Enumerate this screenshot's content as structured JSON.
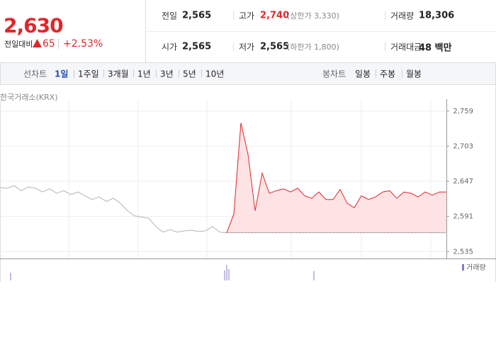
{
  "quote": {
    "price": "2,630",
    "change_label": "전일대비",
    "change": "65",
    "change_rate": "+2.53%"
  },
  "summary": {
    "rows": [
      [
        {
          "label": "전일",
          "value": "2,565"
        },
        {
          "label": "고가",
          "value": "2,740",
          "note": "(상한가 3,330)"
        },
        {
          "label": "거래량",
          "value": "18,306"
        }
      ],
      [
        {
          "label": "시가",
          "value": "2,565"
        },
        {
          "label": "저가",
          "value": "2,565",
          "note": "(하한가 1,800)"
        },
        {
          "label": "거래대금",
          "value": "48 백만"
        }
      ]
    ]
  },
  "tabs": {
    "line_label": "선차트",
    "line_periods": [
      "1일",
      "1주일",
      "3개월",
      "1년",
      "3년",
      "5년",
      "10년"
    ],
    "candle_label": "봉차트",
    "candle_periods": [
      "일봉",
      "주봉",
      "월봉"
    ]
  },
  "chart": {
    "type": "line",
    "source": "한국거래소(KRX)",
    "ylim": [
      2524,
      2778
    ],
    "yticks": [
      {
        "value": 2759,
        "label": "2,759"
      },
      {
        "value": 2703,
        "label": "2,703"
      },
      {
        "value": 2647,
        "label": "2,647"
      },
      {
        "value": 2591,
        "label": "2,591"
      },
      {
        "value": 2535,
        "label": "2,535"
      }
    ],
    "baseline": 2565,
    "series": [
      {
        "color": "#b4b4b4",
        "values": [
          2637,
          2636,
          2640,
          2632,
          2638,
          2636,
          2630,
          2635,
          2628,
          2632,
          2626,
          2630,
          2624,
          2618,
          2622,
          2615,
          2620,
          2612,
          2600,
          2592,
          2590,
          2588,
          2575,
          2566,
          2570,
          2566,
          2568,
          2569,
          2567,
          2568,
          2575,
          2566,
          2565,
          null,
          null,
          null,
          null,
          null,
          null,
          null,
          null,
          null,
          null,
          null,
          null,
          null,
          null,
          null,
          null,
          null,
          null,
          null,
          null,
          null,
          null,
          null,
          null,
          null,
          null,
          null,
          null,
          null,
          null,
          null
        ]
      },
      {
        "color": "#e0262b",
        "values": [
          null,
          null,
          null,
          null,
          null,
          null,
          null,
          null,
          null,
          null,
          null,
          null,
          null,
          null,
          null,
          null,
          null,
          null,
          null,
          null,
          null,
          null,
          null,
          null,
          null,
          null,
          null,
          null,
          null,
          null,
          null,
          null,
          2565,
          2595,
          2740,
          2690,
          2600,
          2660,
          2628,
          2632,
          2635,
          2630,
          2636,
          2624,
          2620,
          2630,
          2618,
          2618,
          2634,
          2612,
          2605,
          2624,
          2618,
          2622,
          2630,
          2632,
          2620,
          2630,
          2628,
          2622,
          2630,
          2625,
          2630,
          2630
        ]
      }
    ],
    "volume_legend": "거래량"
  }
}
